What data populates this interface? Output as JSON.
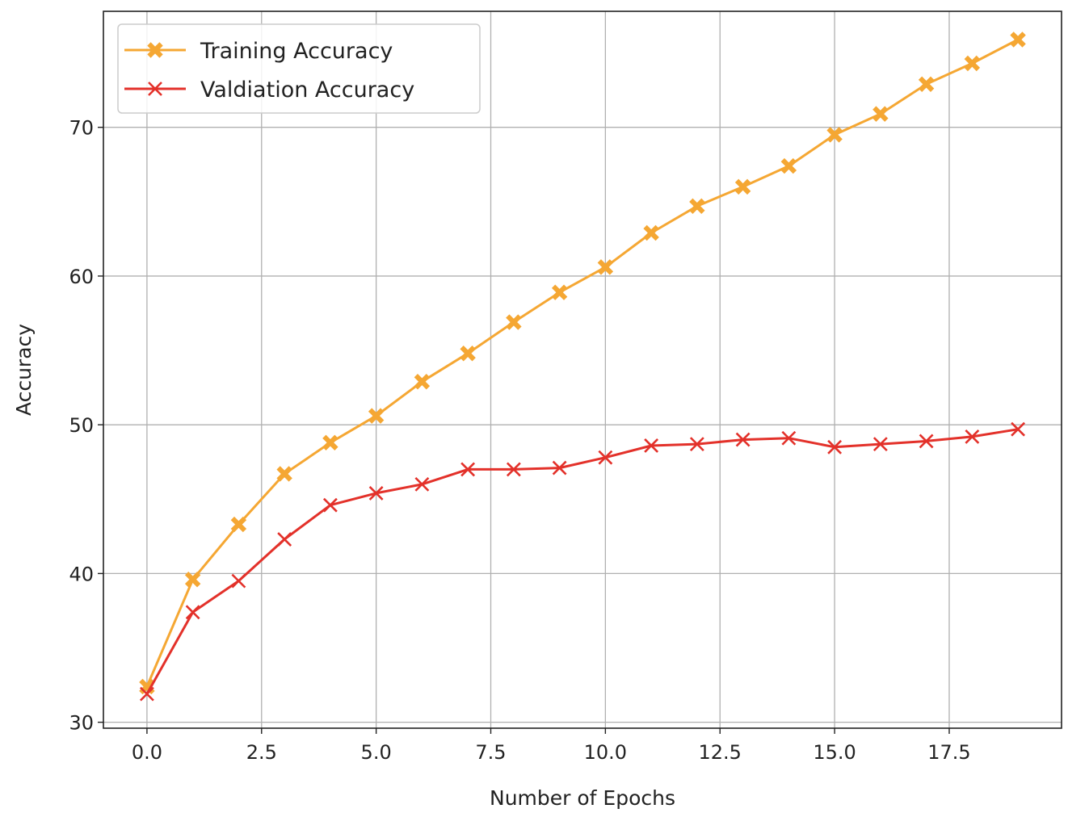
{
  "chart_data": {
    "type": "line",
    "title": "",
    "xlabel": "Number of Epochs",
    "ylabel": "Accuracy",
    "xlim": [
      -0.95,
      19.95
    ],
    "ylim": [
      29.6,
      77.8
    ],
    "xticks": [
      0.0,
      2.5,
      5.0,
      7.5,
      10.0,
      12.5,
      15.0,
      17.5
    ],
    "xtick_labels": [
      "0.0",
      "2.5",
      "5.0",
      "7.5",
      "10.0",
      "12.5",
      "15.0",
      "17.5"
    ],
    "yticks": [
      30,
      40,
      50,
      60,
      70
    ],
    "ytick_labels": [
      "30",
      "40",
      "50",
      "60",
      "70"
    ],
    "grid": true,
    "legend_position": "top-left",
    "x": [
      0,
      1,
      2,
      3,
      4,
      5,
      6,
      7,
      8,
      9,
      10,
      11,
      12,
      13,
      14,
      15,
      16,
      17,
      18,
      19
    ],
    "series": [
      {
        "name": "Training Accuracy",
        "color": "#f5a733",
        "marker": "filled-x",
        "values": [
          32.4,
          39.6,
          43.3,
          46.7,
          48.8,
          50.6,
          52.9,
          54.8,
          56.9,
          58.9,
          60.6,
          62.9,
          64.7,
          66.0,
          67.4,
          69.5,
          70.9,
          72.9,
          74.3,
          75.9
        ]
      },
      {
        "name": "Valdiation Accuracy",
        "color": "#e3312a",
        "marker": "x",
        "values": [
          31.9,
          37.4,
          39.5,
          42.3,
          44.6,
          45.4,
          46.0,
          47.0,
          47.0,
          47.1,
          47.8,
          48.6,
          48.7,
          49.0,
          49.1,
          48.5,
          48.7,
          48.9,
          49.2,
          49.7
        ]
      }
    ]
  }
}
